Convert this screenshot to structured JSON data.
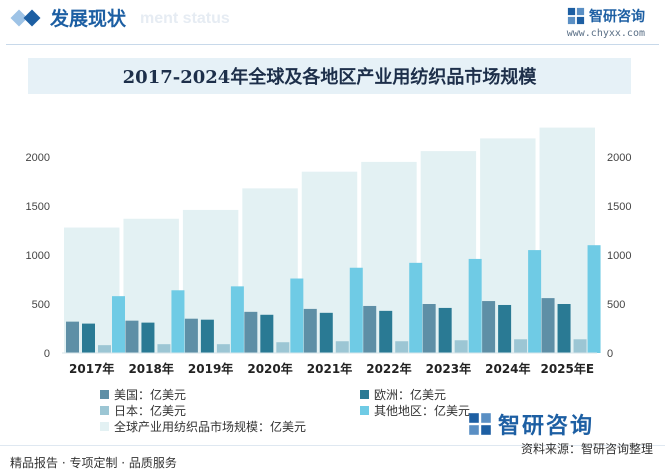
{
  "header": {
    "section_title": "发展现状",
    "section_subtitle": "ment status",
    "brand_name": "智研咨询",
    "brand_url": "www.chyxx.com"
  },
  "chart_title": "2017-2024年全球及各地区产业用纺织品市场规模",
  "footer": {
    "left_text": "精品报告 · 专项定制 · 品质服务",
    "source": "资料来源：智研咨询整理"
  },
  "watermark_brand": "智研咨询",
  "colors": {
    "usa": "#5e8fa6",
    "europe": "#2a7a94",
    "japan": "#9cc6d4",
    "other": "#6fcbe5",
    "global": "#e3f1f3"
  },
  "chart_data": {
    "type": "bar",
    "categories": [
      "2017年",
      "2018年",
      "2019年",
      "2020年",
      "2021年",
      "2022年",
      "2023年",
      "2024年",
      "2025年E"
    ],
    "series": [
      {
        "name": "美国：亿美元",
        "values": [
          320,
          330,
          350,
          420,
          450,
          480,
          500,
          530,
          560
        ]
      },
      {
        "name": "欧洲：亿美元",
        "values": [
          300,
          310,
          340,
          390,
          410,
          430,
          460,
          490,
          500
        ]
      },
      {
        "name": "日本：亿美元",
        "values": [
          80,
          90,
          90,
          110,
          120,
          120,
          130,
          140,
          140
        ]
      },
      {
        "name": "其他地区：亿美元",
        "values": [
          580,
          640,
          680,
          760,
          870,
          920,
          960,
          1050,
          1100
        ]
      },
      {
        "name": "全球产业用纺织品市场规模：亿美元",
        "values": [
          1280,
          1370,
          1460,
          1680,
          1850,
          1950,
          2060,
          2190,
          2300
        ]
      }
    ],
    "yticks": [
      0,
      500,
      1000,
      1500,
      2000
    ],
    "ylim": [
      0,
      2500
    ],
    "grid": false,
    "legend_position": "bottom"
  }
}
